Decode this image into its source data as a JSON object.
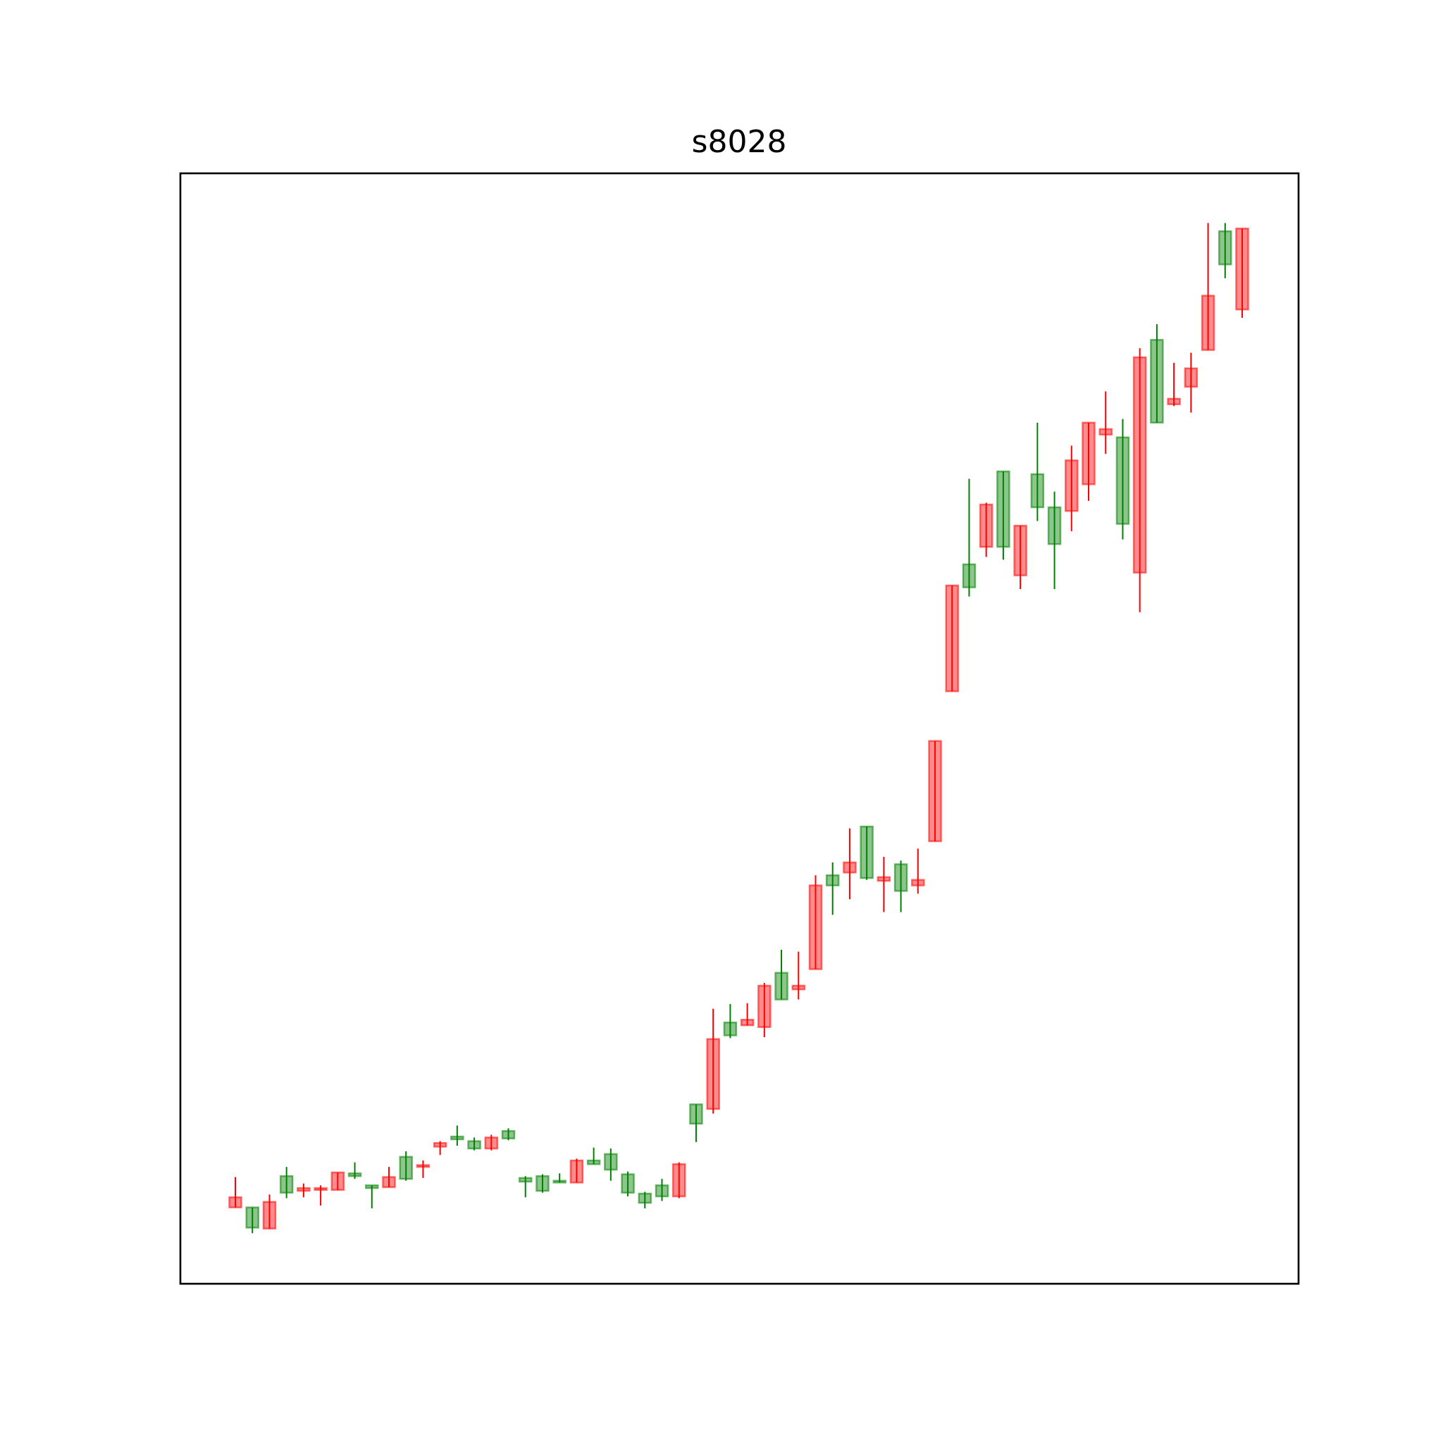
{
  "chart_data": {
    "type": "candlestick",
    "title": "s8028",
    "open": [
      83,
      83,
      60,
      117,
      101,
      102,
      102,
      120,
      107,
      105,
      138,
      127,
      149,
      160,
      155,
      147,
      166,
      115,
      117,
      112,
      110,
      134,
      141,
      119,
      98,
      107,
      95,
      195,
      190,
      284,
      281,
      279,
      338,
      320,
      342,
      444,
      447,
      497,
      438,
      456,
      433,
      481,
      644,
      782,
      801,
      883,
      770,
      880,
      844,
      840,
      869,
      923,
      920,
      773,
      1026,
      956,
      975,
      1015,
      1144,
      1059
    ],
    "high": [
      116,
      83,
      97,
      127,
      109,
      107,
      121,
      132,
      107,
      127,
      144,
      134,
      155,
      172,
      159,
      162,
      169,
      117,
      119,
      120,
      136,
      148,
      147,
      122,
      100,
      114,
      132,
      195,
      299,
      304,
      305,
      327,
      363,
      361,
      444,
      458,
      495,
      497,
      464,
      460,
      473,
      590,
      759,
      875,
      849,
      883,
      824,
      936,
      861,
      911,
      936,
      970,
      940,
      1017,
      1043,
      1001,
      1012,
      1153,
      1153,
      1147
    ],
    "low": [
      83,
      55,
      60,
      93,
      94,
      85,
      102,
      114,
      82,
      105,
      112,
      115,
      140,
      150,
      145,
      145,
      156,
      94,
      99,
      110,
      110,
      130,
      112,
      95,
      82,
      90,
      93,
      154,
      185,
      267,
      281,
      268,
      309,
      309,
      342,
      401,
      418,
      439,
      404,
      404,
      424,
      481,
      644,
      747,
      790,
      787,
      755,
      829,
      755,
      818,
      851,
      902,
      809,
      730,
      936,
      954,
      947,
      1015,
      1093,
      1050
    ],
    "close": [
      94,
      61,
      89,
      99,
      104,
      104,
      121,
      117,
      104,
      116,
      114,
      129,
      153,
      157,
      147,
      159,
      158,
      111,
      101,
      110,
      134,
      130,
      124,
      99,
      88,
      95,
      130,
      174,
      266,
      270,
      287,
      324,
      309,
      324,
      433,
      433,
      458,
      441,
      442,
      427,
      439,
      590,
      759,
      757,
      847,
      801,
      824,
      844,
      804,
      895,
      936,
      929,
      826,
      1007,
      936,
      962,
      995,
      1074,
      1108,
      1147
    ],
    "up_color": "#ff0000",
    "down_color": "#008000",
    "ylim": [
      0,
      1207
    ]
  }
}
